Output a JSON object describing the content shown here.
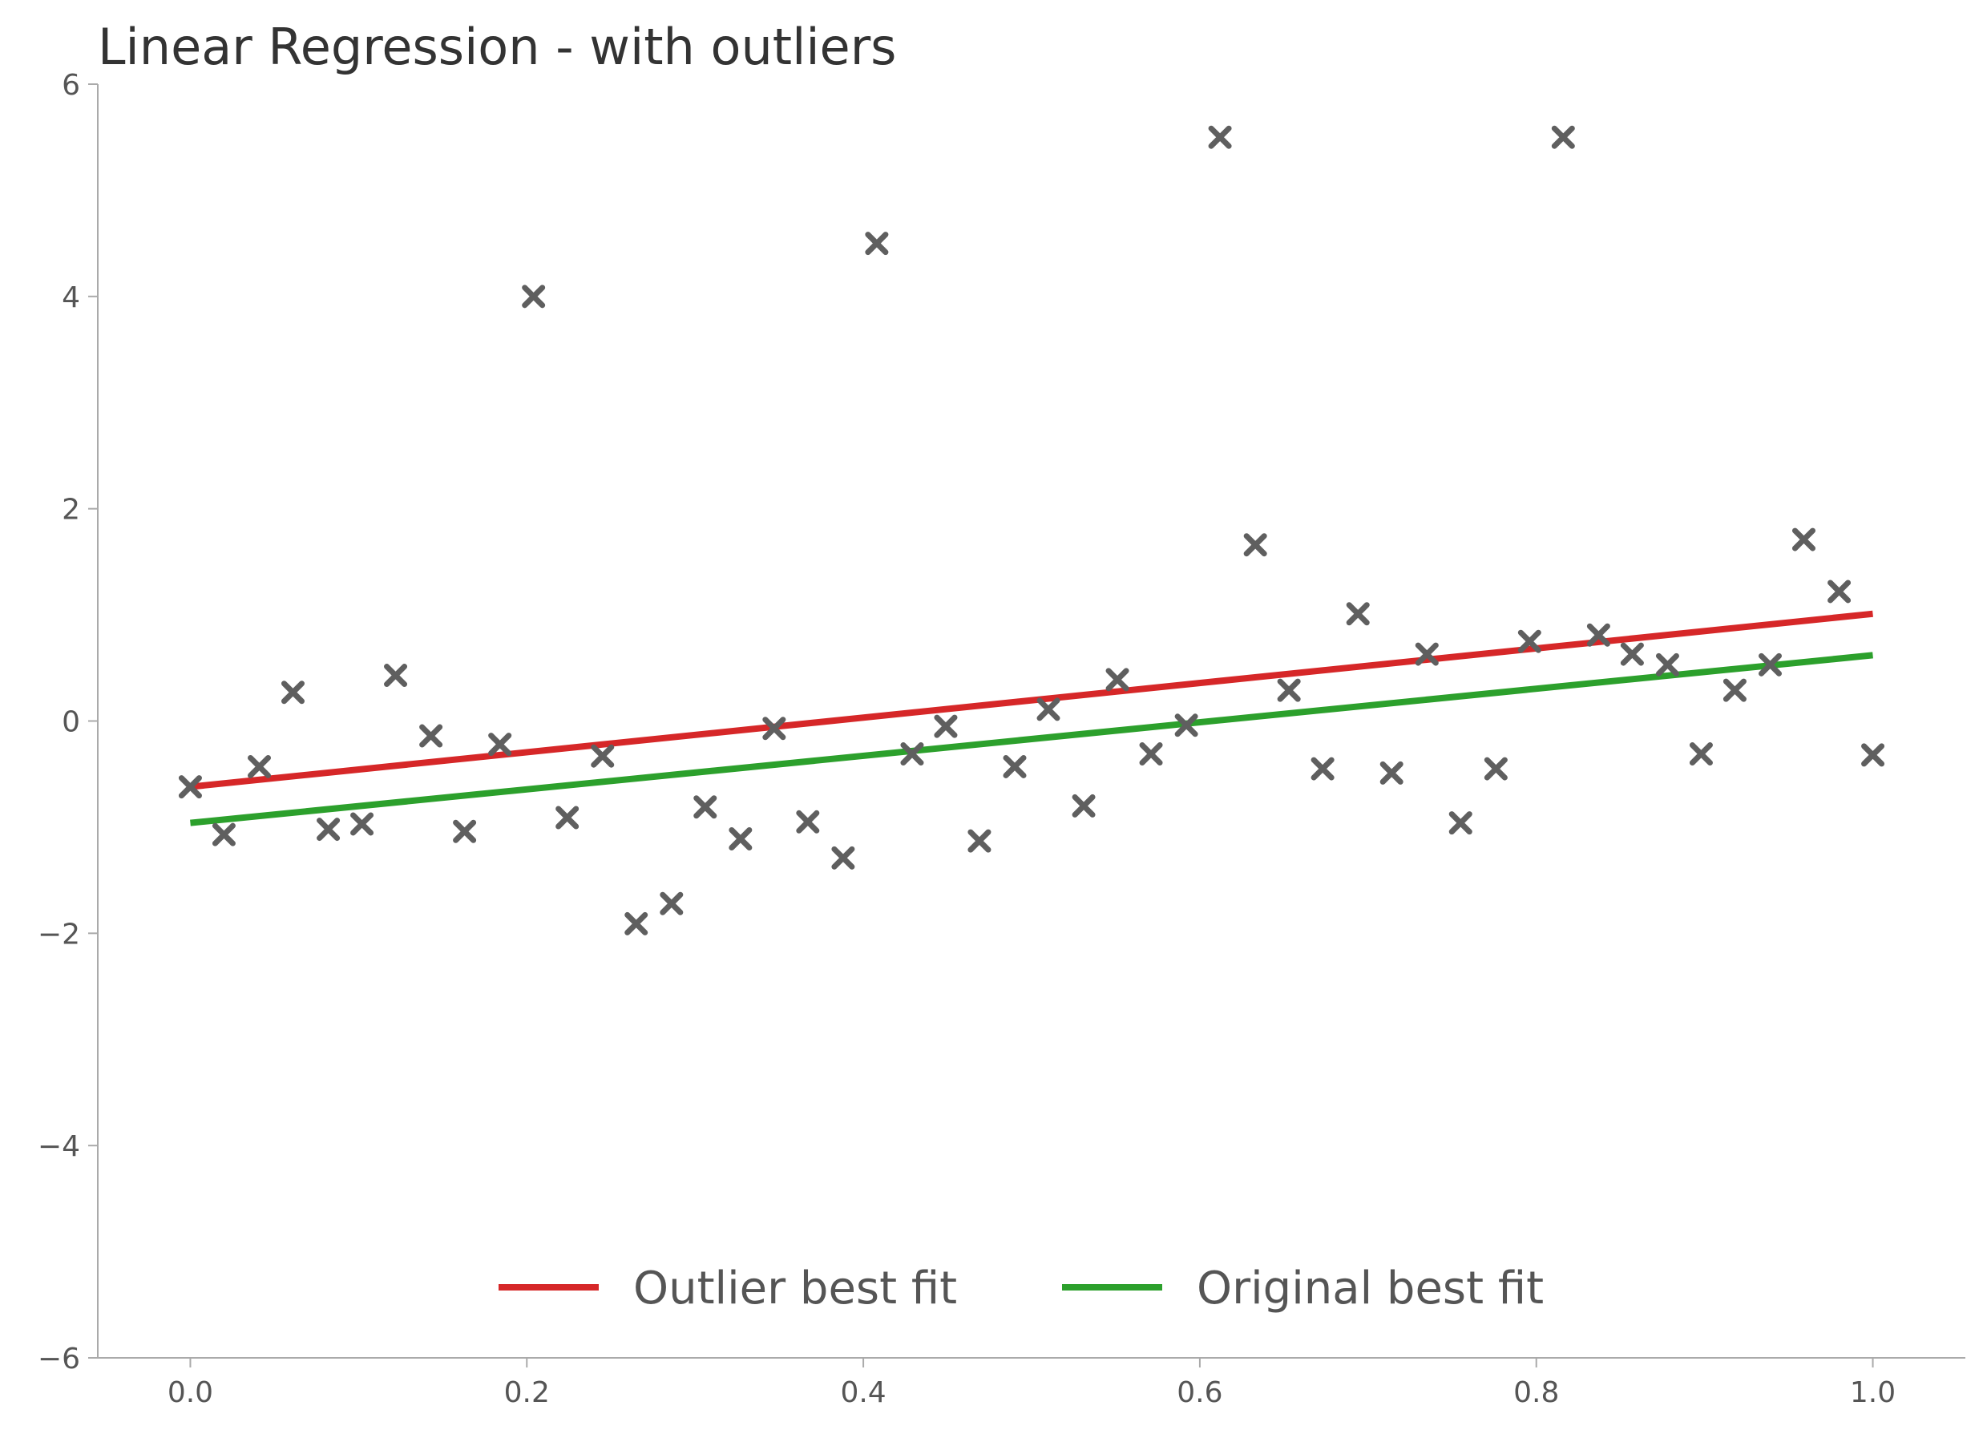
{
  "chart_data": {
    "type": "scatter",
    "title": "Linear Regression - with outliers",
    "xlabel": "",
    "ylabel": "",
    "xlim": [
      -0.055,
      1.055
    ],
    "ylim": [
      -6,
      6
    ],
    "x_ticks": [
      0.0,
      0.2,
      0.4,
      0.6,
      0.8,
      1.0
    ],
    "x_tick_labels": [
      "0.0",
      "0.2",
      "0.4",
      "0.6",
      "0.8",
      "1.0"
    ],
    "y_ticks": [
      -6,
      -4,
      -2,
      0,
      2,
      4,
      6
    ],
    "y_tick_labels": [
      "−6",
      "−4",
      "−2",
      "0",
      "2",
      "4",
      "6"
    ],
    "grid": false,
    "legend_position": "bottom-center",
    "scatter": {
      "marker": "x",
      "color": "#5f5f5f",
      "points": [
        [
          0.0,
          -0.62
        ],
        [
          0.02,
          -1.07
        ],
        [
          0.041,
          -0.43
        ],
        [
          0.061,
          0.27
        ],
        [
          0.082,
          -1.02
        ],
        [
          0.102,
          -0.97
        ],
        [
          0.122,
          0.43
        ],
        [
          0.143,
          -0.14
        ],
        [
          0.163,
          -1.04
        ],
        [
          0.184,
          -0.22
        ],
        [
          0.204,
          4.0
        ],
        [
          0.224,
          -0.91
        ],
        [
          0.245,
          -0.33
        ],
        [
          0.265,
          -1.91
        ],
        [
          0.286,
          -1.72
        ],
        [
          0.306,
          -0.81
        ],
        [
          0.327,
          -1.11
        ],
        [
          0.347,
          -0.07
        ],
        [
          0.367,
          -0.95
        ],
        [
          0.388,
          -1.29
        ],
        [
          0.408,
          4.5
        ],
        [
          0.429,
          -0.31
        ],
        [
          0.449,
          -0.05
        ],
        [
          0.469,
          -1.13
        ],
        [
          0.49,
          -0.43
        ],
        [
          0.51,
          0.11
        ],
        [
          0.531,
          -0.8
        ],
        [
          0.551,
          0.39
        ],
        [
          0.571,
          -0.31
        ],
        [
          0.592,
          -0.04
        ],
        [
          0.612,
          5.5
        ],
        [
          0.633,
          1.66
        ],
        [
          0.653,
          0.29
        ],
        [
          0.673,
          -0.45
        ],
        [
          0.694,
          1.01
        ],
        [
          0.714,
          -0.49
        ],
        [
          0.735,
          0.63
        ],
        [
          0.755,
          -0.96
        ],
        [
          0.776,
          -0.45
        ],
        [
          0.796,
          0.75
        ],
        [
          0.816,
          5.5
        ],
        [
          0.837,
          0.81
        ],
        [
          0.857,
          0.63
        ],
        [
          0.878,
          0.53
        ],
        [
          0.898,
          -0.31
        ],
        [
          0.918,
          0.29
        ],
        [
          0.939,
          0.53
        ],
        [
          0.959,
          1.71
        ],
        [
          0.98,
          1.22
        ],
        [
          1.0,
          -0.32
        ]
      ]
    },
    "series": [
      {
        "name": "Outlier best fit",
        "color": "#d62728",
        "x": [
          0.0,
          1.0
        ],
        "y": [
          -0.62,
          1.01
        ]
      },
      {
        "name": "Original best fit",
        "color": "#2ca02c",
        "x": [
          0.0,
          1.0
        ],
        "y": [
          -0.96,
          0.62
        ]
      }
    ]
  }
}
